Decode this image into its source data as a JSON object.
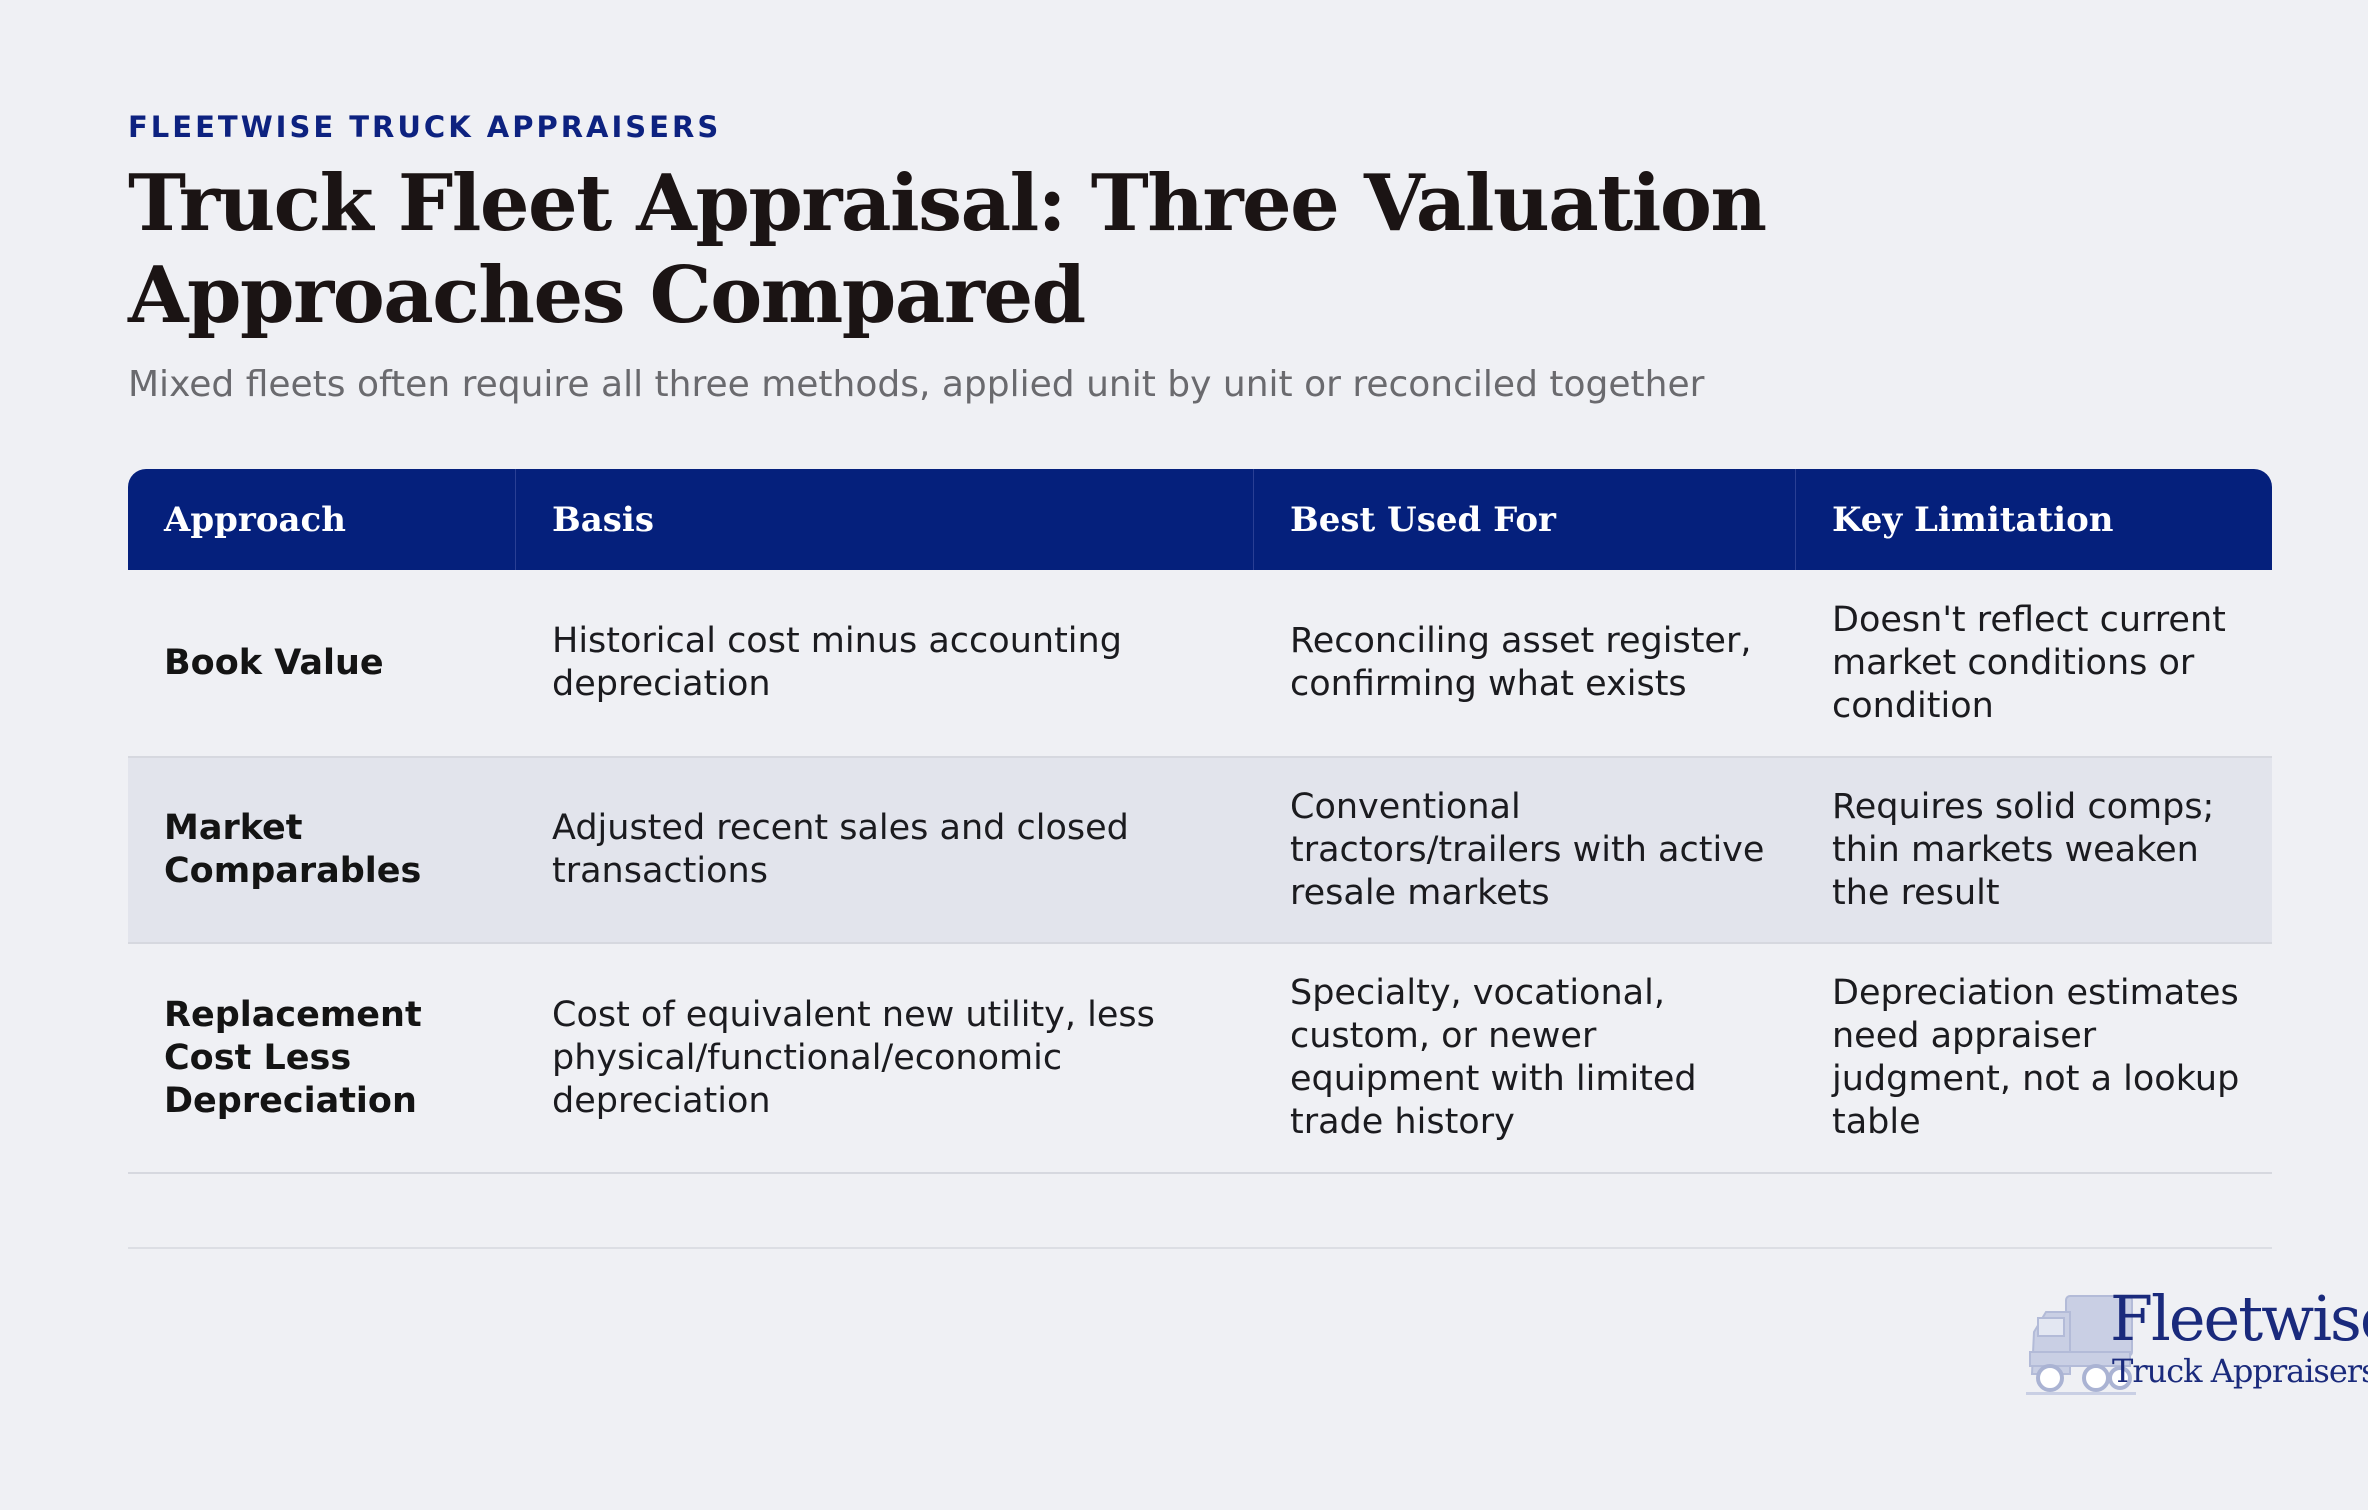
{
  "header": {
    "eyebrow": "FLEETWISE TRUCK APPRAISERS",
    "title": "Truck Fleet Appraisal: Three Valuation Approaches Compared",
    "subtitle": "Mixed fleets often require all three methods, applied unit by unit or reconciled together"
  },
  "table": {
    "columns": [
      "Approach",
      "Basis",
      "Best Used For",
      "Key Limitation"
    ],
    "rows": [
      {
        "approach": "Book Value",
        "basis": "Historical cost minus accounting depreciation",
        "best_used_for": "Reconciling asset register, confirming what exists",
        "key_limitation": "Doesn't reflect current market conditions or condition"
      },
      {
        "approach": "Market Comparables",
        "basis": "Adjusted recent sales and closed transactions",
        "best_used_for": "Conventional tractors/trailers with active resale markets",
        "key_limitation": "Requires solid comps; thin markets weaken the result"
      },
      {
        "approach": "Replacement Cost Less Depreciation",
        "basis": "Cost of equivalent new utility, less physical/functional/economic depreciation",
        "best_used_for": "Specialty, vocational, custom, or newer equipment with limited trade history",
        "key_limitation": "Depreciation estimates need appraiser judgment, not a lookup table"
      }
    ]
  },
  "logo": {
    "wordmark": "Fleetwise",
    "tagline": "Truck Appraisers",
    "icon": "truck-icon"
  },
  "colors": {
    "accent": "#05207c",
    "background": "#eff0f4",
    "shaded_row": "#e2e4ec",
    "title_text": "#1b1414"
  }
}
